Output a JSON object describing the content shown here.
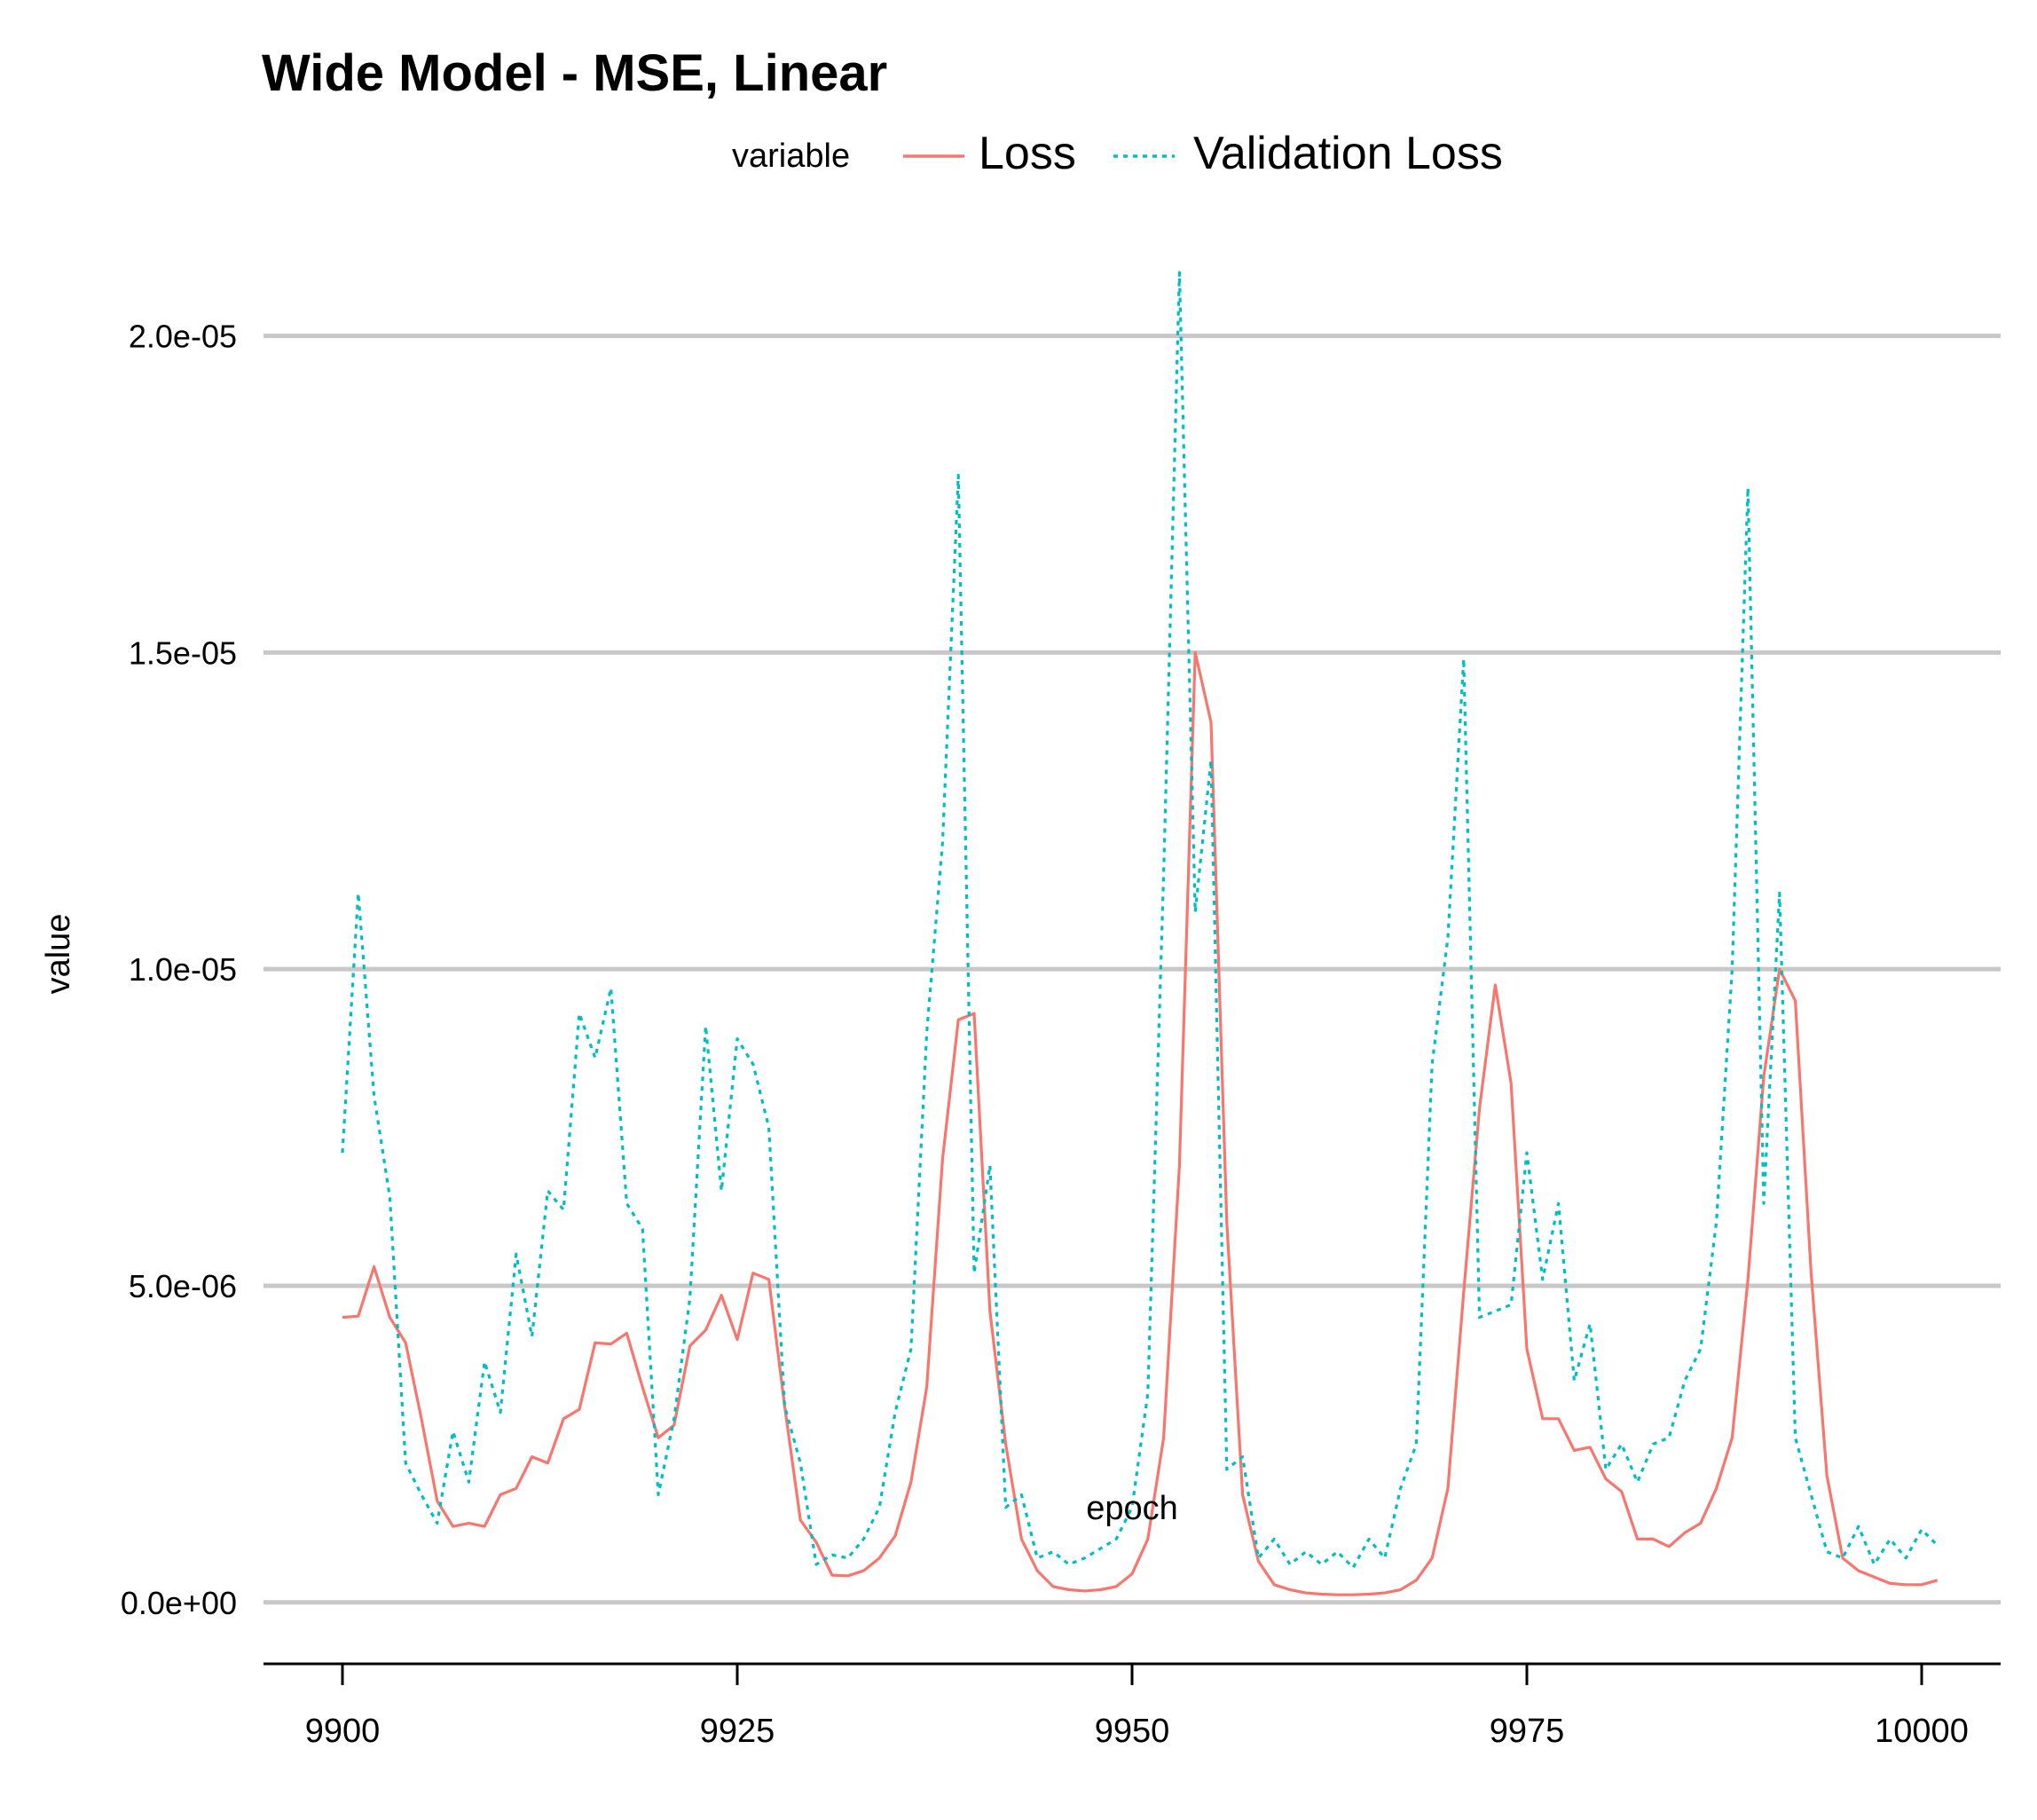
{
  "chart_data": {
    "type": "line",
    "title": "Wide Model - MSE, Linear",
    "xlabel": "epoch",
    "ylabel": "value",
    "legend": {
      "title": "variable",
      "position": "top"
    },
    "xlim": [
      9895,
      10005
    ],
    "ylim": [
      -9e-07,
      2.11e-05
    ],
    "x_ticks": [
      9900,
      9925,
      9950,
      9975,
      10000
    ],
    "x_tick_labels": [
      "9900",
      "9925",
      "9950",
      "9975",
      "10000"
    ],
    "y_ticks": [
      0,
      5e-06,
      1e-05,
      1.5e-05,
      2e-05
    ],
    "y_tick_labels": [
      "0.0e+00",
      "5.0e-06",
      "1.0e-05",
      "1.5e-05",
      "2.0e-05"
    ],
    "grid": {
      "horizontal": true,
      "vertical": false
    },
    "x_start": 9900,
    "series": [
      {
        "name": "Loss",
        "color": "#F8766D",
        "line_style": "solid",
        "values": [
          4.5e-06,
          4.52e-06,
          5.3e-06,
          4.5e-06,
          4.1e-06,
          2.9e-06,
          1.6e-06,
          1.2e-06,
          1.25e-06,
          1.2e-06,
          1.7e-06,
          1.8e-06,
          2.3e-06,
          2.2e-06,
          2.9e-06,
          3.05e-06,
          4.1e-06,
          4.08e-06,
          4.25e-06,
          3.4e-06,
          2.6e-06,
          2.8e-06,
          4.05e-06,
          4.3e-06,
          4.85e-06,
          4.15e-06,
          5.2e-06,
          5.1e-06,
          3.1e-06,
          1.3e-06,
          9.5e-07,
          4.3e-07,
          4.2e-07,
          5e-07,
          7e-07,
          1.05e-06,
          1.9e-06,
          3.4e-06,
          7e-06,
          9.2e-06,
          9.3e-06,
          4.6e-06,
          2.5e-06,
          1e-06,
          5e-07,
          2.5e-07,
          2e-07,
          1.8e-07,
          2e-07,
          2.5e-07,
          4.5e-07,
          1e-06,
          2.6e-06,
          6.9e-06,
          1.5e-05,
          1.39e-05,
          6e-06,
          1.7e-06,
          6.5e-07,
          2.8e-07,
          2e-07,
          1.5e-07,
          1.3e-07,
          1.2e-07,
          1.2e-07,
          1.3e-07,
          1.5e-07,
          2e-07,
          3.5e-07,
          7e-07,
          1.8e-06,
          4.9e-06,
          7.8e-06,
          9.75e-06,
          8.2e-06,
          4e-06,
          2.9e-06,
          2.9e-06,
          2.4e-06,
          2.45e-06,
          1.95e-06,
          1.75e-06,
          1e-06,
          1e-06,
          8.8e-07,
          1.1e-06,
          1.25e-06,
          1.8e-06,
          2.6e-06,
          5.1e-06,
          8.3e-06,
          1e-05,
          9.5e-06,
          5.2e-06,
          2e-06,
          7e-07,
          5e-07,
          4e-07,
          3e-07,
          2.8e-07,
          2.8e-07,
          3.5e-07
        ]
      },
      {
        "name": "Validation Loss",
        "color": "#00BFC4",
        "line_style": "dotted",
        "values": [
          7.1e-06,
          1.12e-05,
          8e-06,
          6.4e-06,
          2.2e-06,
          1.7e-06,
          1.25e-06,
          2.7e-06,
          1.9e-06,
          3.8e-06,
          3e-06,
          5.5e-06,
          4.2e-06,
          6.5e-06,
          6.2e-06,
          9.3e-06,
          8.6e-06,
          9.7e-06,
          6.3e-06,
          5.9e-06,
          1.7e-06,
          2.9e-06,
          4.8e-06,
          9.1e-06,
          6.5e-06,
          8.9e-06,
          8.5e-06,
          7.5e-06,
          3.1e-06,
          2.2e-06,
          6e-07,
          7.5e-07,
          7e-07,
          1e-06,
          1.5e-06,
          3e-06,
          4e-06,
          9e-06,
          1.2e-05,
          1.78e-05,
          5.2e-06,
          6.9e-06,
          1.5e-06,
          1.7e-06,
          7e-07,
          8e-07,
          6e-07,
          7e-07,
          8.5e-07,
          1e-06,
          1.5e-06,
          3.3e-06,
          1.15e-05,
          2.1e-05,
          1.09e-05,
          1.33e-05,
          2.1e-06,
          2.3e-06,
          7e-07,
          1e-06,
          6e-07,
          8e-07,
          6e-07,
          8e-07,
          5.5e-07,
          1e-06,
          7e-07,
          1.8e-06,
          2.5e-06,
          8.5e-06,
          1.05e-05,
          1.49e-05,
          4.5e-06,
          4.6e-06,
          4.7e-06,
          7.1e-06,
          5.1e-06,
          6.3e-06,
          3.5e-06,
          4.4e-06,
          2.1e-06,
          2.5e-06,
          1.9e-06,
          2.5e-06,
          2.6e-06,
          3.5e-06,
          4e-06,
          6e-06,
          1e-05,
          1.76e-05,
          6.3e-06,
          1.12e-05,
          2.6e-06,
          1.7e-06,
          8e-07,
          7e-07,
          1.2e-06,
          6e-07,
          1e-06,
          7e-07,
          1.15e-06,
          9e-07
        ]
      }
    ]
  }
}
